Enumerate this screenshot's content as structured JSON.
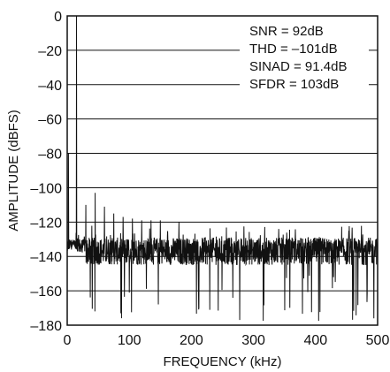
{
  "chart_data": {
    "type": "line",
    "title": "",
    "xlabel": "FREQUENCY (kHz)",
    "ylabel": "AMPLITUDE (dBFS)",
    "xlim": [
      0,
      500
    ],
    "ylim": [
      -180,
      0
    ],
    "xticks": [
      "0",
      "100",
      "200",
      "300",
      "400",
      "500"
    ],
    "yticks": [
      "0",
      "–20",
      "–40",
      "–60",
      "–80",
      "–100",
      "–120",
      "–140",
      "–160",
      "–180"
    ],
    "grid": true,
    "annotations": [
      "SNR = 92dB",
      "THD = –101dB",
      "SINAD = 91.4dB",
      "SFDR = 103dB"
    ],
    "noise_floor": {
      "mean": -137,
      "min": -178,
      "max": -122
    },
    "peaks": [
      {
        "x": 15,
        "y": 0
      },
      {
        "x": 2,
        "y": -80
      },
      {
        "x": 30,
        "y": -110
      },
      {
        "x": 45,
        "y": -103
      },
      {
        "x": 60,
        "y": -111
      },
      {
        "x": 75,
        "y": -115
      },
      {
        "x": 90,
        "y": -117
      },
      {
        "x": 105,
        "y": -118
      },
      {
        "x": 120,
        "y": -119
      },
      {
        "x": 135,
        "y": -119
      },
      {
        "x": 150,
        "y": -119
      },
      {
        "x": 180,
        "y": -120
      }
    ],
    "series_color": "#111111"
  }
}
